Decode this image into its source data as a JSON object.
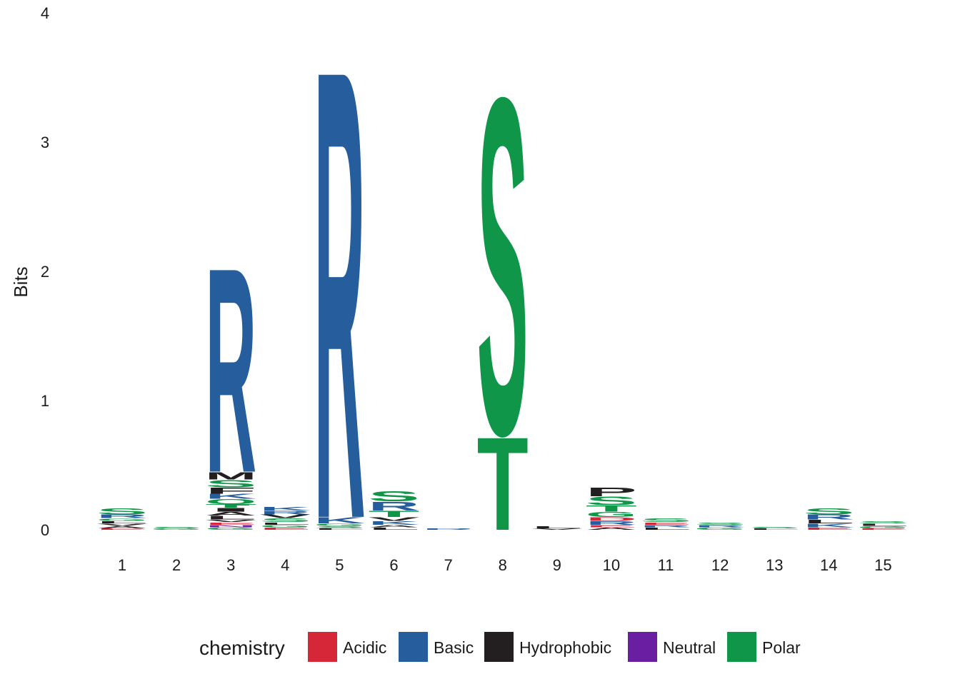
{
  "chart_data": {
    "type": "sequence-logo",
    "ylabel": "Bits",
    "ylim": [
      0,
      4
    ],
    "yticks": [
      "0",
      "1",
      "2",
      "3",
      "4"
    ],
    "positions": [
      "1",
      "2",
      "3",
      "4",
      "5",
      "6",
      "7",
      "8",
      "9",
      "10",
      "11",
      "12",
      "13",
      "14",
      "15"
    ],
    "colors": {
      "Acidic": "#d62738",
      "Basic": "#255d9d",
      "Hydrophobic": "#231f20",
      "Neutral": "#6a1fa2",
      "Polar": "#0f9648"
    },
    "legend": {
      "title": "chemistry",
      "entries": [
        "Acidic",
        "Basic",
        "Hydrophobic",
        "Neutral",
        "Polar"
      ],
      "placement": "bottom"
    },
    "stacks": [
      [
        {
          "aa": "E",
          "cls": "Acidic",
          "bits": 0.01
        },
        {
          "aa": "A",
          "cls": "Hydrophobic",
          "bits": 0.02
        },
        {
          "aa": "V",
          "cls": "Hydrophobic",
          "bits": 0.02
        },
        {
          "aa": "L",
          "cls": "Hydrophobic",
          "bits": 0.02
        },
        {
          "aa": "G",
          "cls": "Polar",
          "bits": 0.02
        },
        {
          "aa": "R",
          "cls": "Basic",
          "bits": 0.03
        },
        {
          "aa": "S",
          "cls": "Polar",
          "bits": 0.05
        }
      ],
      [
        {
          "aa": "G",
          "cls": "Polar",
          "bits": 0.01
        },
        {
          "aa": "S",
          "cls": "Polar",
          "bits": 0.01
        }
      ],
      [
        {
          "aa": "G",
          "cls": "Polar",
          "bits": 0.02
        },
        {
          "aa": "N",
          "cls": "Neutral",
          "bits": 0.02
        },
        {
          "aa": "E",
          "cls": "Acidic",
          "bits": 0.02
        },
        {
          "aa": "V",
          "cls": "Hydrophobic",
          "bits": 0.02
        },
        {
          "aa": "L",
          "cls": "Hydrophobic",
          "bits": 0.03
        },
        {
          "aa": "A",
          "cls": "Hydrophobic",
          "bits": 0.03
        },
        {
          "aa": "I",
          "cls": "Hydrophobic",
          "bits": 0.03
        },
        {
          "aa": "T",
          "cls": "Polar",
          "bits": 0.03
        },
        {
          "aa": "Q",
          "cls": "Polar",
          "bits": 0.04
        },
        {
          "aa": "K",
          "cls": "Basic",
          "bits": 0.04
        },
        {
          "aa": "F",
          "cls": "Hydrophobic",
          "bits": 0.05
        },
        {
          "aa": "S",
          "cls": "Polar",
          "bits": 0.06
        },
        {
          "aa": "M",
          "cls": "Hydrophobic",
          "bits": 0.06
        },
        {
          "aa": "R",
          "cls": "Basic",
          "bits": 1.65
        }
      ],
      [
        {
          "aa": "E",
          "cls": "Acidic",
          "bits": 0.02
        },
        {
          "aa": "G",
          "cls": "Polar",
          "bits": 0.02
        },
        {
          "aa": "L",
          "cls": "Hydrophobic",
          "bits": 0.02
        },
        {
          "aa": "S",
          "cls": "Polar",
          "bits": 0.03
        },
        {
          "aa": "V",
          "cls": "Hydrophobic",
          "bits": 0.03
        },
        {
          "aa": "R",
          "cls": "Basic",
          "bits": 0.03
        },
        {
          "aa": "K",
          "cls": "Basic",
          "bits": 0.03
        }
      ],
      [
        {
          "aa": "L",
          "cls": "Hydrophobic",
          "bits": 0.01
        },
        {
          "aa": "S",
          "cls": "Polar",
          "bits": 0.02
        },
        {
          "aa": "G",
          "cls": "Polar",
          "bits": 0.02
        },
        {
          "aa": "K",
          "cls": "Basic",
          "bits": 0.05
        },
        {
          "aa": "R",
          "cls": "Basic",
          "bits": 3.62
        }
      ],
      [
        {
          "aa": "L",
          "cls": "Hydrophobic",
          "bits": 0.02
        },
        {
          "aa": "A",
          "cls": "Hydrophobic",
          "bits": 0.02
        },
        {
          "aa": "K",
          "cls": "Basic",
          "bits": 0.03
        },
        {
          "aa": "V",
          "cls": "Hydrophobic",
          "bits": 0.03
        },
        {
          "aa": "T",
          "cls": "Polar",
          "bits": 0.05
        },
        {
          "aa": "R",
          "cls": "Basic",
          "bits": 0.07
        },
        {
          "aa": "S",
          "cls": "Polar",
          "bits": 0.08
        }
      ],
      [
        {
          "aa": "R",
          "cls": "Basic",
          "bits": 0.01
        }
      ],
      [
        {
          "aa": "T",
          "cls": "Polar",
          "bits": 0.75
        },
        {
          "aa": "S",
          "cls": "Polar",
          "bits": 2.71
        }
      ],
      [
        {
          "aa": "V",
          "cls": "Hydrophobic",
          "bits": 0.01
        },
        {
          "aa": "L",
          "cls": "Hydrophobic",
          "bits": 0.02
        }
      ],
      [
        {
          "aa": "A",
          "cls": "Hydrophobic",
          "bits": 0.02
        },
        {
          "aa": "E",
          "cls": "Acidic",
          "bits": 0.02
        },
        {
          "aa": "R",
          "cls": "Basic",
          "bits": 0.03
        },
        {
          "aa": "D",
          "cls": "Acidic",
          "bits": 0.03
        },
        {
          "aa": "G",
          "cls": "Polar",
          "bits": 0.04
        },
        {
          "aa": "T",
          "cls": "Polar",
          "bits": 0.05
        },
        {
          "aa": "S",
          "cls": "Polar",
          "bits": 0.07
        },
        {
          "aa": "P",
          "cls": "Hydrophobic",
          "bits": 0.07
        }
      ],
      [
        {
          "aa": "L",
          "cls": "Hydrophobic",
          "bits": 0.02
        },
        {
          "aa": "R",
          "cls": "Basic",
          "bits": 0.02
        },
        {
          "aa": "E",
          "cls": "Acidic",
          "bits": 0.02
        },
        {
          "aa": "S",
          "cls": "Polar",
          "bits": 0.03
        }
      ],
      [
        {
          "aa": "G",
          "cls": "Polar",
          "bits": 0.02
        },
        {
          "aa": "R",
          "cls": "Basic",
          "bits": 0.02
        },
        {
          "aa": "S",
          "cls": "Polar",
          "bits": 0.02
        }
      ],
      [
        {
          "aa": "L",
          "cls": "Hydrophobic",
          "bits": 0.01
        },
        {
          "aa": "S",
          "cls": "Polar",
          "bits": 0.01
        }
      ],
      [
        {
          "aa": "E",
          "cls": "Acidic",
          "bits": 0.02
        },
        {
          "aa": "K",
          "cls": "Basic",
          "bits": 0.03
        },
        {
          "aa": "L",
          "cls": "Hydrophobic",
          "bits": 0.03
        },
        {
          "aa": "R",
          "cls": "Basic",
          "bits": 0.04
        },
        {
          "aa": "S",
          "cls": "Polar",
          "bits": 0.05
        }
      ],
      [
        {
          "aa": "E",
          "cls": "Acidic",
          "bits": 0.01
        },
        {
          "aa": "G",
          "cls": "Polar",
          "bits": 0.02
        },
        {
          "aa": "L",
          "cls": "Hydrophobic",
          "bits": 0.02
        },
        {
          "aa": "S",
          "cls": "Polar",
          "bits": 0.02
        }
      ]
    ]
  }
}
